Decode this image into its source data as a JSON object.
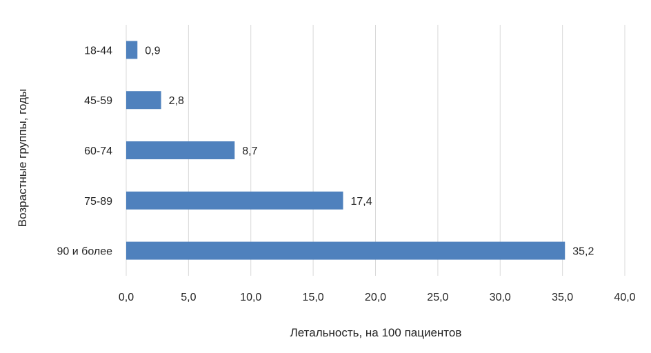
{
  "chart_data": {
    "type": "bar",
    "orientation": "horizontal",
    "title": "",
    "xlabel": "Летальность, на 100 пациентов",
    "ylabel": "Возрастные группы, годы",
    "categories": [
      "18-44",
      "45-59",
      "60-74",
      "75-89",
      "90 и более"
    ],
    "values": [
      0.9,
      2.8,
      8.7,
      17.4,
      35.2
    ],
    "value_labels": [
      "0,9",
      "2,8",
      "8,7",
      "17,4",
      "35,2"
    ],
    "xlim": [
      0,
      40
    ],
    "x_ticks": [
      0,
      5,
      10,
      15,
      20,
      25,
      30,
      35,
      40
    ],
    "x_tick_labels": [
      "0,0",
      "5,0",
      "10,0",
      "15,0",
      "20,0",
      "25,0",
      "30,0",
      "35,0",
      "40,0"
    ],
    "grid": "vertical",
    "legend": "none",
    "colors": {
      "bar": "#4f81bd",
      "grid": "#d9d9d9",
      "text": "#222222"
    }
  }
}
